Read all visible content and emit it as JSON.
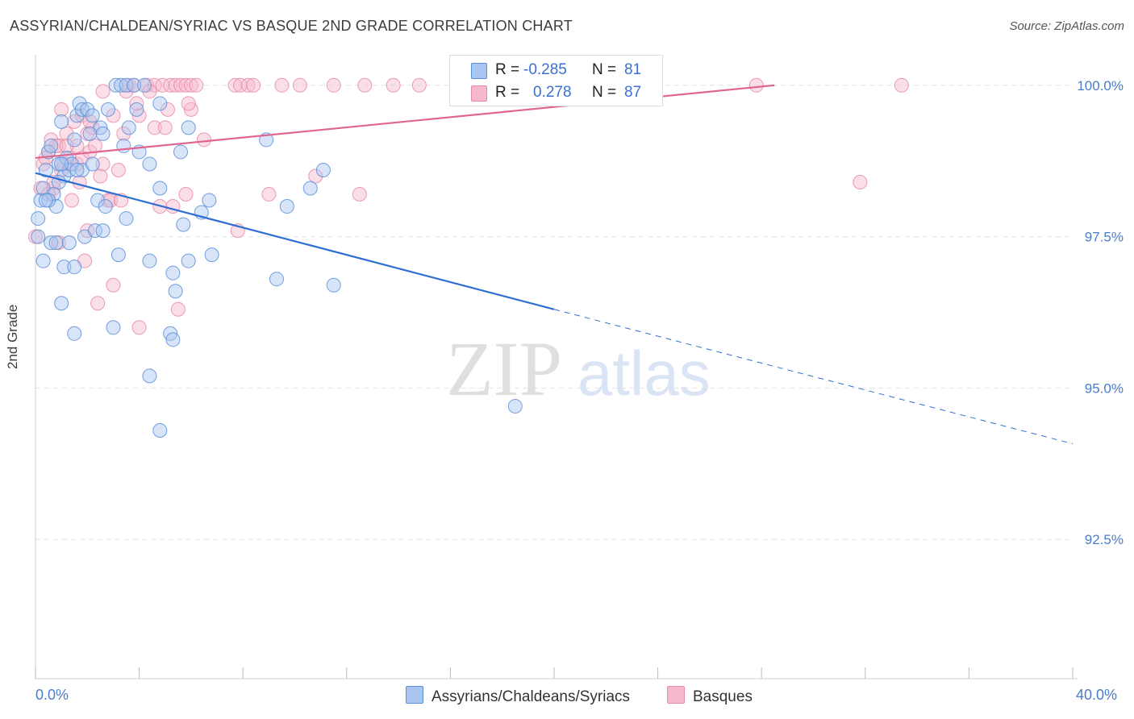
{
  "title": "ASSYRIAN/CHALDEAN/SYRIAC VS BASQUE 2ND GRADE CORRELATION CHART",
  "source": "Source: ZipAtlas.com",
  "watermark": {
    "zip": "ZIP",
    "atlas": "atlas"
  },
  "legend": {
    "r_label": "R =",
    "n_label": "N =",
    "series1": {
      "r": "-0.285",
      "n": "81"
    },
    "series2": {
      "r": "0.278",
      "n": "87"
    }
  },
  "bottom_legend": {
    "series1": "Assyrians/Chaldeans/Syriacs",
    "series2": "Basques"
  },
  "x_axis": {
    "min_label": "0.0%",
    "max_label": "40.0%"
  },
  "colors": {
    "blue_fill": "#a9c6f0",
    "blue_stroke": "#5b8fd8",
    "blue_line": "#2f6fd1",
    "pink_fill": "#f6b8cb",
    "pink_stroke": "#e98aa8",
    "pink_line": "#e0648e",
    "tick_label": "#4a7cc9",
    "grid": "#e3e3e3"
  },
  "chart_data": {
    "type": "scatter",
    "title": "ASSYRIAN/CHALDEAN/SYRIAC VS BASQUE 2ND GRADE CORRELATION CHART",
    "xlabel": "",
    "ylabel": "2nd Grade",
    "xlim": [
      0,
      40
    ],
    "ylim": [
      90.2,
      100.45
    ],
    "y_ticks": [
      {
        "value": 100.0,
        "label": "100.0%"
      },
      {
        "value": 97.5,
        "label": "97.5%"
      },
      {
        "value": 95.0,
        "label": "95.0%"
      },
      {
        "value": 92.5,
        "label": "92.5%"
      }
    ],
    "x_ticks": [
      0,
      4,
      8,
      12,
      16,
      20,
      24,
      28,
      32,
      36,
      40
    ],
    "grid": true,
    "legend_position": "top-center",
    "series": [
      {
        "name": "Assyrians/Chaldeans/Syriacs",
        "color": "blue",
        "trend": {
          "x0": 0.0,
          "y0": 98.55,
          "x1": 20.0,
          "y1": 96.3,
          "x_dash_end": 40.0,
          "y_dash_end": 94.08
        },
        "points": [
          [
            0.1,
            97.8
          ],
          [
            0.2,
            98.1
          ],
          [
            0.3,
            98.3
          ],
          [
            0.4,
            98.6
          ],
          [
            0.5,
            98.9
          ],
          [
            0.6,
            99.0
          ],
          [
            0.7,
            98.2
          ],
          [
            0.8,
            98.0
          ],
          [
            0.9,
            98.7
          ],
          [
            1.0,
            99.4
          ],
          [
            1.1,
            98.5
          ],
          [
            1.2,
            98.8
          ],
          [
            1.3,
            98.6
          ],
          [
            1.4,
            98.7
          ],
          [
            1.5,
            99.1
          ],
          [
            1.6,
            99.5
          ],
          [
            1.7,
            99.7
          ],
          [
            1.8,
            99.6
          ],
          [
            2.0,
            99.6
          ],
          [
            2.2,
            99.5
          ],
          [
            2.5,
            99.3
          ],
          [
            2.8,
            99.6
          ],
          [
            3.1,
            100.0
          ],
          [
            3.3,
            100.0
          ],
          [
            3.5,
            100.0
          ],
          [
            3.8,
            100.0
          ],
          [
            4.2,
            100.0
          ],
          [
            4.8,
            99.7
          ],
          [
            0.1,
            97.5
          ],
          [
            0.3,
            97.1
          ],
          [
            0.6,
            97.4
          ],
          [
            0.8,
            97.4
          ],
          [
            1.1,
            97.0
          ],
          [
            1.3,
            97.4
          ],
          [
            1.5,
            97.0
          ],
          [
            1.9,
            97.5
          ],
          [
            2.3,
            97.6
          ],
          [
            2.6,
            97.6
          ],
          [
            3.2,
            97.2
          ],
          [
            3.5,
            97.8
          ],
          [
            4.4,
            97.1
          ],
          [
            5.3,
            96.9
          ],
          [
            5.9,
            97.1
          ],
          [
            6.8,
            97.2
          ],
          [
            1.0,
            96.4
          ],
          [
            1.5,
            95.9
          ],
          [
            3.0,
            96.0
          ],
          [
            5.2,
            95.9
          ],
          [
            5.3,
            95.8
          ],
          [
            4.4,
            95.2
          ],
          [
            4.8,
            94.3
          ],
          [
            1.8,
            98.6
          ],
          [
            2.4,
            98.1
          ],
          [
            2.7,
            98.0
          ],
          [
            3.4,
            99.0
          ],
          [
            4.0,
            98.9
          ],
          [
            4.4,
            98.7
          ],
          [
            5.6,
            98.9
          ],
          [
            5.9,
            99.3
          ],
          [
            6.4,
            97.9
          ],
          [
            6.7,
            98.1
          ],
          [
            5.7,
            97.7
          ],
          [
            5.4,
            96.6
          ],
          [
            4.8,
            98.3
          ],
          [
            3.9,
            99.6
          ],
          [
            2.1,
            99.2
          ],
          [
            2.6,
            99.2
          ],
          [
            3.6,
            99.3
          ],
          [
            8.9,
            99.1
          ],
          [
            9.3,
            96.8
          ],
          [
            9.7,
            98.0
          ],
          [
            10.6,
            98.3
          ],
          [
            11.1,
            98.6
          ],
          [
            11.5,
            96.7
          ],
          [
            18.5,
            94.7
          ],
          [
            1.0,
            98.7
          ],
          [
            0.5,
            98.1
          ],
          [
            0.9,
            98.4
          ],
          [
            2.2,
            98.7
          ],
          [
            1.6,
            98.6
          ],
          [
            0.4,
            98.1
          ]
        ]
      },
      {
        "name": "Basques",
        "color": "pink",
        "trend": {
          "x0": 0.0,
          "y0": 98.8,
          "x1": 28.5,
          "y1": 100.0
        },
        "points": [
          [
            0.0,
            97.5
          ],
          [
            0.2,
            98.3
          ],
          [
            0.3,
            98.7
          ],
          [
            0.5,
            98.9
          ],
          [
            0.6,
            99.1
          ],
          [
            0.7,
            98.3
          ],
          [
            0.9,
            99.0
          ],
          [
            1.0,
            99.6
          ],
          [
            1.2,
            99.2
          ],
          [
            1.3,
            98.8
          ],
          [
            1.5,
            99.4
          ],
          [
            1.6,
            98.7
          ],
          [
            1.7,
            98.4
          ],
          [
            1.8,
            98.8
          ],
          [
            2.0,
            99.2
          ],
          [
            2.1,
            98.9
          ],
          [
            2.2,
            99.3
          ],
          [
            2.5,
            98.5
          ],
          [
            2.6,
            98.7
          ],
          [
            2.8,
            98.1
          ],
          [
            3.0,
            99.5
          ],
          [
            3.2,
            98.6
          ],
          [
            3.5,
            99.9
          ],
          [
            3.6,
            100.0
          ],
          [
            3.8,
            100.0
          ],
          [
            4.0,
            99.5
          ],
          [
            4.3,
            100.0
          ],
          [
            4.6,
            100.0
          ],
          [
            4.9,
            100.0
          ],
          [
            5.2,
            100.0
          ],
          [
            5.4,
            100.0
          ],
          [
            5.6,
            100.0
          ],
          [
            5.8,
            100.0
          ],
          [
            6.0,
            100.0
          ],
          [
            6.2,
            100.0
          ],
          [
            7.7,
            100.0
          ],
          [
            7.9,
            100.0
          ],
          [
            8.2,
            100.0
          ],
          [
            8.4,
            100.0
          ],
          [
            9.5,
            100.0
          ],
          [
            10.2,
            100.0
          ],
          [
            11.5,
            100.0
          ],
          [
            12.7,
            100.0
          ],
          [
            13.8,
            100.0
          ],
          [
            14.8,
            100.0
          ],
          [
            19.0,
            100.0
          ],
          [
            27.8,
            100.0
          ],
          [
            33.4,
            100.0
          ],
          [
            4.6,
            99.3
          ],
          [
            5.0,
            99.3
          ],
          [
            6.0,
            99.6
          ],
          [
            6.5,
            99.1
          ],
          [
            5.8,
            98.2
          ],
          [
            4.8,
            98.0
          ],
          [
            5.3,
            98.0
          ],
          [
            7.8,
            97.6
          ],
          [
            9.0,
            98.2
          ],
          [
            10.8,
            98.5
          ],
          [
            12.5,
            98.2
          ],
          [
            31.8,
            98.4
          ],
          [
            1.0,
            98.6
          ],
          [
            0.8,
            99.0
          ],
          [
            1.4,
            98.1
          ],
          [
            1.9,
            97.1
          ],
          [
            2.4,
            96.4
          ],
          [
            3.0,
            96.7
          ],
          [
            4.0,
            96.0
          ],
          [
            5.5,
            96.3
          ],
          [
            0.4,
            98.8
          ],
          [
            0.5,
            98.2
          ],
          [
            0.9,
            97.4
          ],
          [
            1.1,
            98.7
          ],
          [
            1.6,
            99.0
          ],
          [
            2.3,
            99.0
          ],
          [
            2.0,
            97.6
          ],
          [
            2.9,
            98.1
          ],
          [
            3.4,
            99.2
          ],
          [
            3.9,
            99.7
          ],
          [
            4.4,
            99.9
          ],
          [
            2.6,
            99.9
          ],
          [
            1.8,
            99.5
          ],
          [
            2.1,
            99.4
          ],
          [
            1.2,
            99.0
          ],
          [
            0.7,
            98.4
          ],
          [
            5.1,
            99.6
          ],
          [
            5.9,
            99.7
          ],
          [
            3.3,
            98.1
          ]
        ]
      }
    ]
  }
}
